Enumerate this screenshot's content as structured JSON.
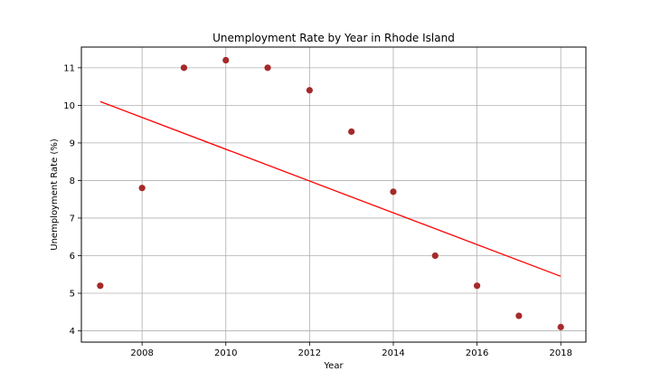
{
  "chart_data": {
    "type": "scatter",
    "title": "Unemployment Rate by Year in Rhode Island",
    "xlabel": "Year",
    "ylabel": "Unemployment Rate (%)",
    "x": [
      2007,
      2008,
      2009,
      2010,
      2011,
      2012,
      2013,
      2014,
      2015,
      2016,
      2017,
      2018
    ],
    "y": [
      5.2,
      7.8,
      11.0,
      11.2,
      11.0,
      10.4,
      9.3,
      7.7,
      6.0,
      5.2,
      4.4,
      4.1
    ],
    "xlim": [
      2006.55,
      2018.6
    ],
    "ylim": [
      3.7,
      11.55
    ],
    "xticks": [
      2008,
      2010,
      2012,
      2014,
      2016,
      2018
    ],
    "yticks": [
      4,
      5,
      6,
      7,
      8,
      9,
      10,
      11
    ],
    "grid": true,
    "regression_line": {
      "x": [
        2007,
        2018
      ],
      "y": [
        10.1,
        5.45
      ]
    },
    "colors": {
      "points": "#a52a2a",
      "line": "#ff0000",
      "grid": "#b0b0b0"
    }
  }
}
